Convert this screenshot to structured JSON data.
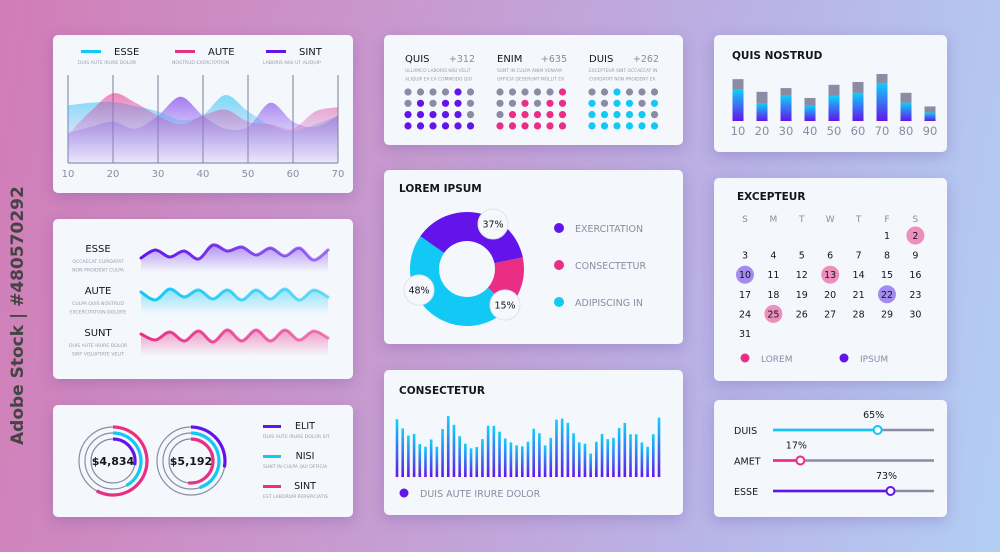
{
  "watermark": "Adobe Stock | #480570292",
  "colors": {
    "cyan": "#12c8f5",
    "pink": "#ea2e86",
    "purple": "#6214ea",
    "gray": "#8b8ca3",
    "title": "#15151f",
    "sub": "#9a9cb0"
  },
  "chart_data": [
    {
      "type": "area",
      "id": "area-waves",
      "legend": [
        {
          "name": "ESSE",
          "sub": "DUIS AUTE IRURE DOLOR",
          "color": "#12c8f5"
        },
        {
          "name": "AUTE",
          "sub": "NOSTRUD EXERCITATION",
          "color": "#ea2e86"
        },
        {
          "name": "SINT",
          "sub": "LABORIS NISI UT ALIQUIP",
          "color": "#6214ea"
        }
      ],
      "x": [
        10,
        15,
        20,
        25,
        30,
        35,
        40,
        45,
        50,
        55,
        60,
        65,
        70
      ],
      "xticks": [
        "10",
        "20",
        "30",
        "40",
        "50",
        "60",
        "70"
      ],
      "series": [
        {
          "name": "ESSE",
          "values": [
            67,
            70,
            71,
            66,
            60,
            50,
            56,
            79,
            60,
            44,
            37,
            45,
            55
          ]
        },
        {
          "name": "AUTE",
          "values": [
            33,
            60,
            81,
            70,
            55,
            45,
            55,
            62,
            48,
            45,
            40,
            60,
            65
          ]
        },
        {
          "name": "SINT",
          "values": [
            35,
            42,
            48,
            40,
            55,
            77,
            55,
            40,
            42,
            70,
            48,
            42,
            55
          ]
        }
      ],
      "grid": "vertical"
    },
    {
      "type": "line",
      "id": "wave-lines",
      "series": [
        {
          "name": "ESSE",
          "sub": [
            "OCCAECAT CUPIDATAT",
            "NON PROIDENT CULPA"
          ],
          "color": "#6214ea",
          "values": [
            6,
            -2,
            5,
            -1,
            7,
            -7,
            -1,
            -5,
            3,
            -4,
            4,
            -4,
            8,
            -2
          ]
        },
        {
          "name": "AUTE",
          "sub": [
            "CULPA QUIS NOSTRUD",
            "EXCERCITATION DOLORE"
          ],
          "color": "#12c8f5",
          "values": [
            -2,
            6,
            -5,
            3,
            -4,
            5,
            -4,
            6,
            -4,
            5,
            -5,
            6,
            -4,
            3
          ]
        },
        {
          "name": "SUNT",
          "sub": [
            "DUIS AUTE IRURE DOLOR",
            "SINT VOLUPTATE VELIT"
          ],
          "color": "#ea2e86",
          "values": [
            -2,
            4,
            -4,
            5,
            -5,
            6,
            -6,
            5,
            -6,
            5,
            -6,
            4,
            -5,
            2
          ]
        }
      ]
    },
    {
      "type": "radial",
      "id": "rings",
      "items": [
        {
          "value": "$4,834",
          "rings": [
            {
              "series": "SINT",
              "percent": 58
            },
            {
              "series": "NISI",
              "percent": 42
            },
            {
              "series": "ELIT",
              "percent": 28
            }
          ]
        },
        {
          "value": "$5,192",
          "rings": [
            {
              "series": "ELIT",
              "percent": 28
            },
            {
              "series": "NISI",
              "percent": 45
            },
            {
              "series": "SINT",
              "percent": 52
            }
          ]
        }
      ],
      "legend": [
        {
          "name": "ELIT",
          "sub": "DUIS AUTE IRURE DOLOR SIT",
          "color": "#6214ea"
        },
        {
          "name": "NISI",
          "sub": "SUNT IN CULPA QUI OFFICIA",
          "color": "#12c8f5"
        },
        {
          "name": "SINT",
          "sub": "EST LABORUM PERSPICIATIS",
          "color": "#ea2e86"
        }
      ]
    },
    {
      "type": "dot-matrix",
      "id": "dot-stats",
      "groups": [
        {
          "title": "QUIS",
          "value": "+312",
          "sub": [
            "ULLAMCO LABORIS NISI VELIT",
            "ALIQUIP EX EA COMMODO QUI"
          ],
          "color": "#6214ea",
          "rows": [
            "000010",
            "010110",
            "111110",
            "111111"
          ]
        },
        {
          "title": "ENIM",
          "value": "+635",
          "sub": [
            "SUNT IN CULPA ANIM VENIAM",
            "OFFICIA DESERUNT MOLLIT EX"
          ],
          "color": "#ea2e86",
          "rows": [
            "000001",
            "001011",
            "011111",
            "111111"
          ]
        },
        {
          "title": "DUIS",
          "value": "+262",
          "sub": [
            "EXCEPTEUR SINT OCCAECAT IN",
            "CUPIDATAT NON PROIDENT EX"
          ],
          "color": "#12c8f5",
          "rows": [
            "001000",
            "101101",
            "111110",
            "111111"
          ]
        }
      ]
    },
    {
      "type": "pie",
      "id": "donut",
      "title": "LOREM IPSUM",
      "slices": [
        {
          "name": "EXERCITATION",
          "value": 37,
          "label": "37%",
          "color": "#6214ea"
        },
        {
          "name": "CONSECTETUR",
          "value": 15,
          "label": "15%",
          "color": "#ea2e86"
        },
        {
          "name": "ADIPISCING IN",
          "value": 48,
          "label": "48%",
          "color": "#12c8f5"
        }
      ]
    },
    {
      "type": "bar",
      "id": "spectrum",
      "title": "CONSECTETUR",
      "legend": "DUIS AUTE IRURE DOLOR",
      "values": [
        177,
        149,
        127,
        132,
        101,
        93,
        115,
        93,
        147,
        187,
        160,
        125,
        102,
        88,
        92,
        116,
        157,
        157,
        139,
        118,
        106,
        97,
        94,
        108,
        148,
        134,
        97,
        120,
        176,
        179,
        166,
        134,
        106,
        102,
        72,
        108,
        132,
        116,
        120,
        150,
        166,
        131,
        131,
        106,
        93,
        131,
        182
      ],
      "ylim": [
        0,
        190
      ]
    },
    {
      "type": "bar",
      "id": "stacked-bars",
      "title": "QUIS NOSTRUD",
      "categories": [
        "10",
        "20",
        "30",
        "40",
        "50",
        "60",
        "70",
        "80",
        "90"
      ],
      "totals": [
        89,
        62,
        70,
        49,
        77,
        83,
        100,
        60,
        31
      ],
      "values": [
        68,
        38,
        55,
        33,
        54,
        60,
        81,
        39,
        18
      ],
      "ylim": [
        0,
        100
      ]
    },
    {
      "type": "table",
      "id": "calendar",
      "title": "EXCEPTEUR",
      "weekdays": [
        "S",
        "M",
        "T",
        "W",
        "T",
        "F",
        "S"
      ],
      "first_weekday": 5,
      "days": 31,
      "highlights": {
        "LOREM": [
          2,
          13,
          25
        ],
        "IPSUM": [
          10,
          22
        ]
      },
      "legend": [
        {
          "name": "LOREM",
          "color": "#ea2e86"
        },
        {
          "name": "IPSUM",
          "color": "#6214ea"
        }
      ]
    },
    {
      "type": "bar",
      "id": "sliders",
      "items": [
        {
          "name": "DUIS",
          "percent": 65,
          "label": "65%",
          "color": "#12c8f5"
        },
        {
          "name": "AMET",
          "percent": 17,
          "label": "17%",
          "color": "#ea2e86"
        },
        {
          "name": "ESSE",
          "percent": 73,
          "label": "73%",
          "color": "#6214ea"
        }
      ]
    }
  ]
}
